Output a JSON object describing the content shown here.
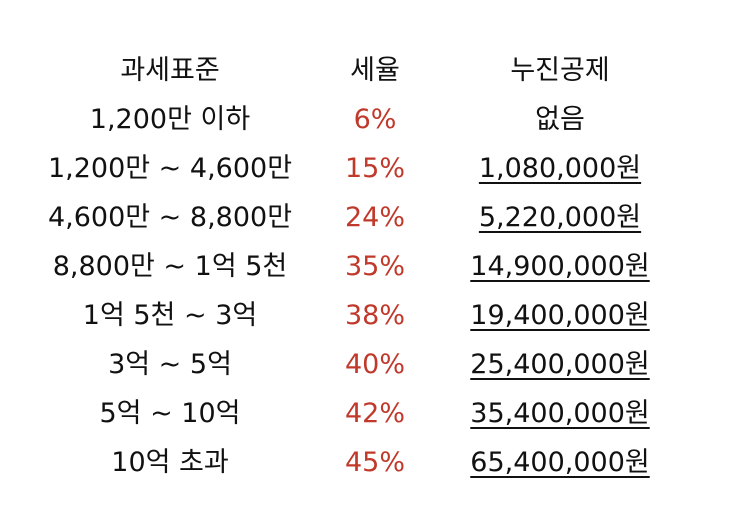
{
  "headers": {
    "standard": "과세표준",
    "rate": "세율",
    "deduction": "누진공제"
  },
  "rows": [
    {
      "standard": "1,200만 이하",
      "rate": "6%",
      "deduction": "없음"
    },
    {
      "standard": "1,200만 ~ 4,600만",
      "rate": "15%",
      "deduction": "1,080,000원"
    },
    {
      "standard": "4,600만 ~ 8,800만",
      "rate": "24%",
      "deduction": "5,220,000원"
    },
    {
      "standard": "8,800만 ~ 1억 5천",
      "rate": "35%",
      "deduction": "14,900,000원"
    },
    {
      "standard": "1억 5천 ~ 3억",
      "rate": "38%",
      "deduction": "19,400,000원"
    },
    {
      "standard": "3억 ~ 5억",
      "rate": "40%",
      "deduction": "25,400,000원"
    },
    {
      "standard": "5억 ~ 10억",
      "rate": "42%",
      "deduction": "35,400,000원"
    },
    {
      "standard": "10억 초과",
      "rate": "45%",
      "deduction": "65,400,000원"
    }
  ],
  "colors": {
    "rate_text": "#c0392b",
    "text": "#111111",
    "background": "#ffffff"
  }
}
